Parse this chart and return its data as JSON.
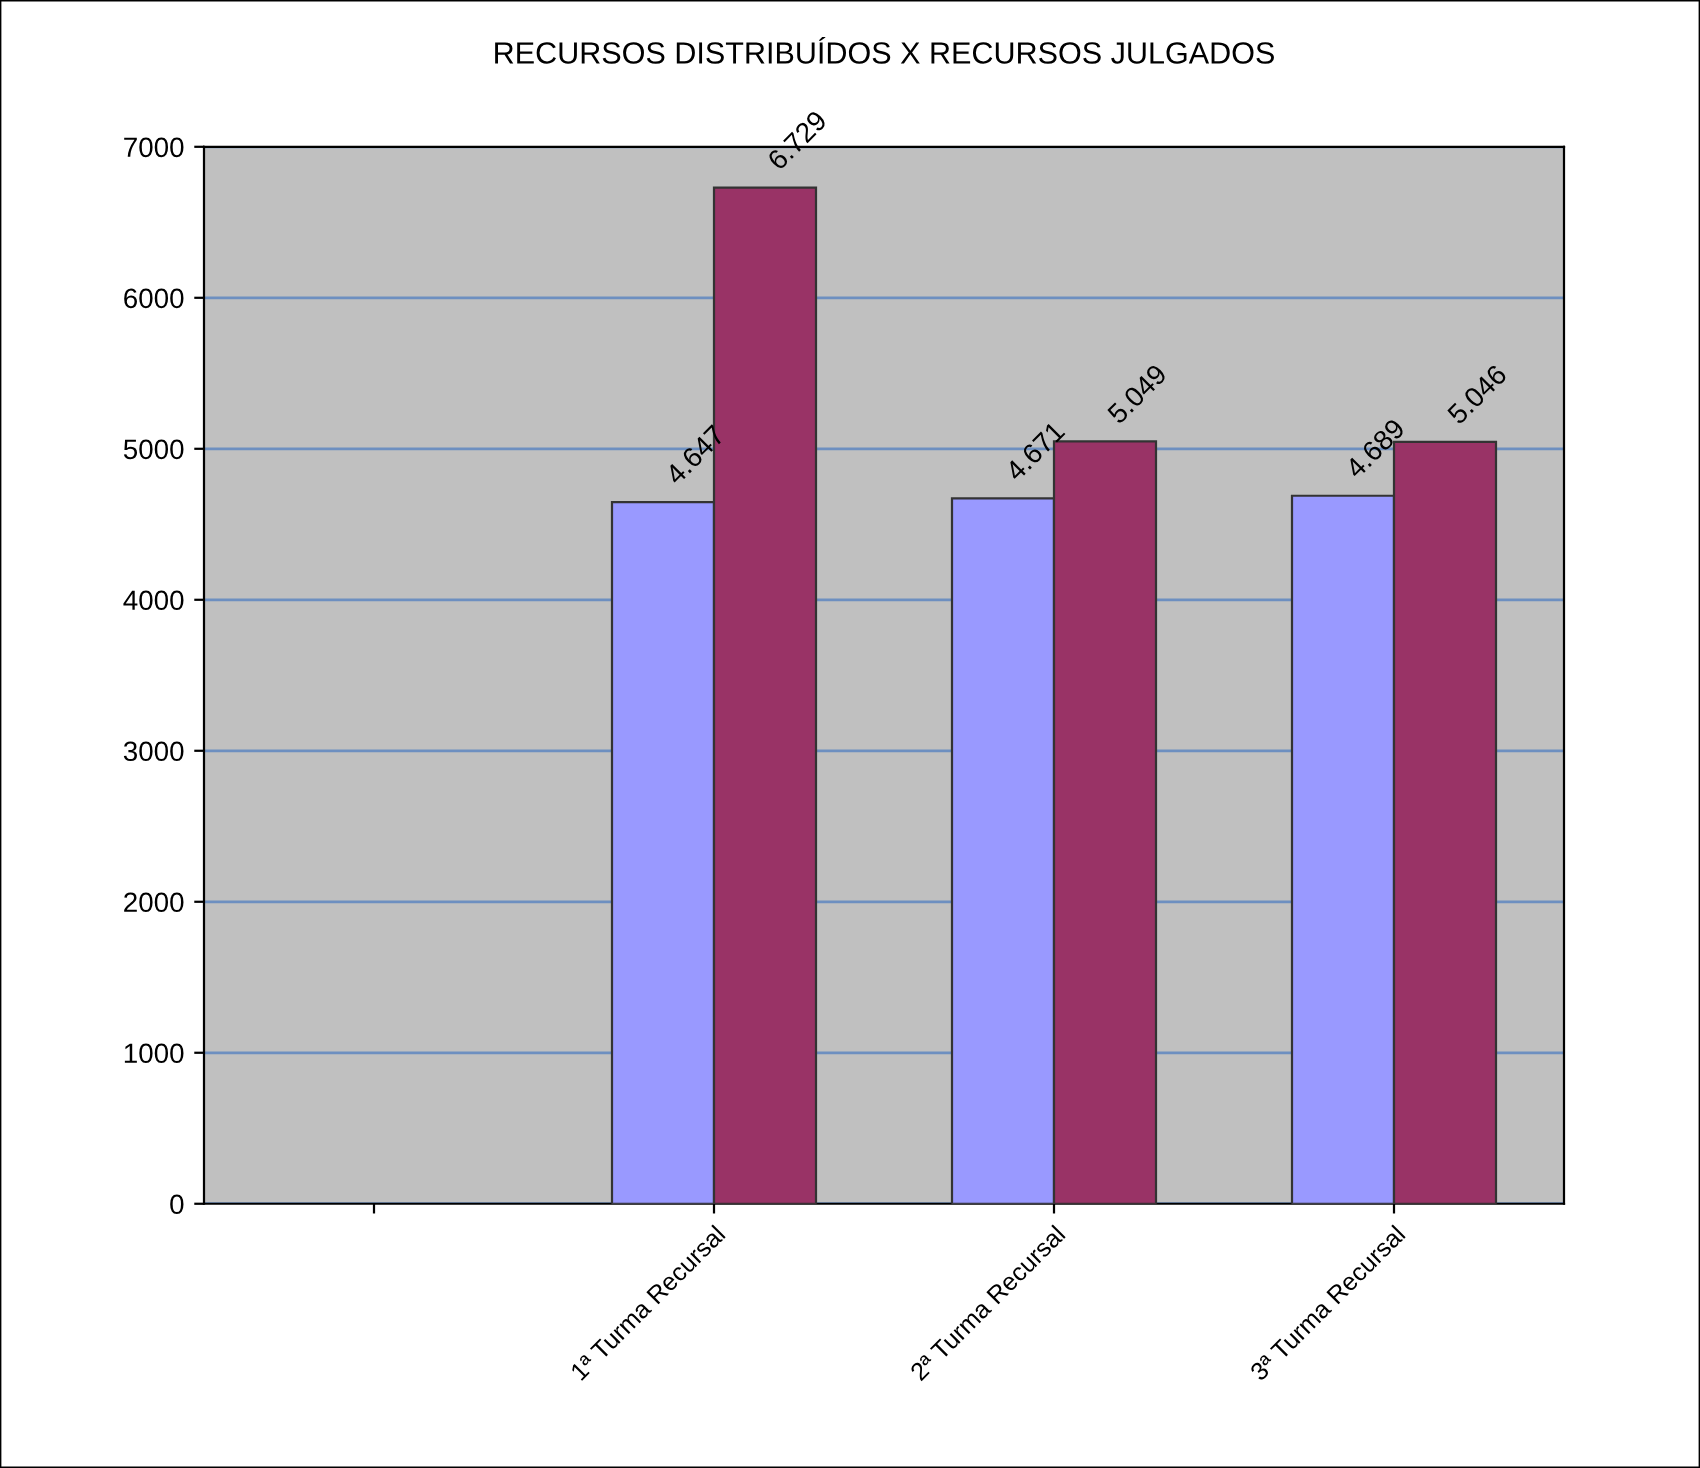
{
  "chart_data": {
    "type": "bar",
    "title": "RECURSOS DISTRIBUÍDOS X RECURSOS JULGADOS",
    "categories": [
      null,
      "1ª Turma Recursal",
      "2ª Turma Recursal",
      "3ª Turma Recursal"
    ],
    "series": [
      {
        "color": "#9999ff",
        "values": [
          null,
          4647,
          4671,
          4689
        ],
        "value_labels": [
          null,
          "4.647",
          "4.671",
          "4.689"
        ]
      },
      {
        "color": "#993366",
        "values": [
          null,
          6729,
          5049,
          5046
        ],
        "value_labels": [
          null,
          "6.729",
          "5.049",
          "5.046"
        ]
      }
    ],
    "ylim": [
      0,
      7000
    ],
    "yticks": [
      0,
      1000,
      2000,
      3000,
      4000,
      5000,
      6000,
      7000
    ],
    "grid": "y",
    "legend": false
  }
}
